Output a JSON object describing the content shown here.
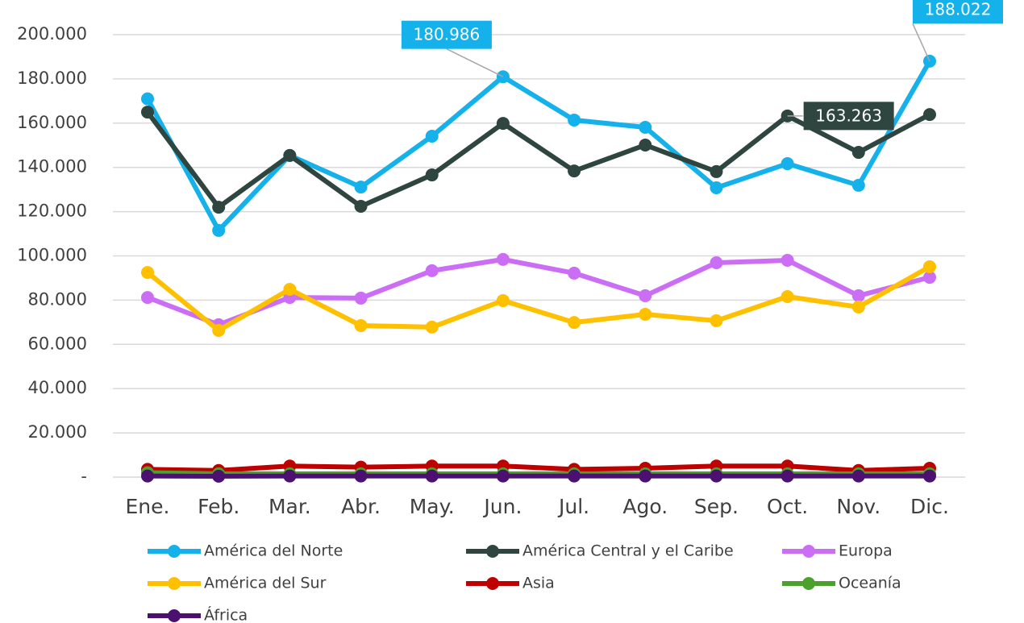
{
  "chart_data": {
    "type": "line",
    "categories": [
      "Ene.",
      "Feb.",
      "Mar.",
      "Abr.",
      "May.",
      "Jun.",
      "Jul.",
      "Ago.",
      "Sep.",
      "Oct.",
      "Nov.",
      "Dic."
    ],
    "ylim": [
      0,
      200000
    ],
    "yticks": [
      {
        "value": 0,
        "label": "-"
      },
      {
        "value": 20000,
        "label": "20.000"
      },
      {
        "value": 40000,
        "label": "40.000"
      },
      {
        "value": 60000,
        "label": "60.000"
      },
      {
        "value": 80000,
        "label": "80.000"
      },
      {
        "value": 100000,
        "label": "100.000"
      },
      {
        "value": 120000,
        "label": "120.000"
      },
      {
        "value": 140000,
        "label": "140.000"
      },
      {
        "value": 160000,
        "label": "160.000"
      },
      {
        "value": 180000,
        "label": "180.000"
      },
      {
        "value": 200000,
        "label": "200.000"
      }
    ],
    "grid": true,
    "legend": "bottom",
    "series": [
      {
        "name": "América del Norte",
        "color": "#14b1ea",
        "values": [
          171000,
          111500,
          145400,
          131100,
          154100,
          180986,
          161400,
          158100,
          130800,
          141700,
          131900,
          188022
        ],
        "value_labels": [
          null,
          null,
          null,
          null,
          null,
          "180.986",
          null,
          null,
          null,
          null,
          null,
          "188.022"
        ]
      },
      {
        "name": "América Central y el Caribe",
        "color": "#2f4640",
        "values": [
          165000,
          122000,
          145400,
          122400,
          136600,
          159900,
          138400,
          150100,
          138100,
          163263,
          146800,
          163900
        ],
        "value_labels": [
          null,
          null,
          null,
          null,
          null,
          null,
          null,
          null,
          null,
          "163.263",
          null,
          null
        ]
      },
      {
        "name": "Europa",
        "color": "#cc6ef5",
        "values": [
          81200,
          68900,
          81200,
          80900,
          93300,
          98400,
          92200,
          82000,
          96900,
          98000,
          82000,
          90300
        ]
      },
      {
        "name": "América del Sur",
        "color": "#ffc000",
        "values": [
          92500,
          66300,
          84900,
          68500,
          67800,
          79800,
          69900,
          73600,
          70700,
          81600,
          76900,
          95100
        ]
      },
      {
        "name": "Asia",
        "color": "#c00000",
        "values": [
          3500,
          3000,
          5000,
          4500,
          5000,
          5000,
          3500,
          4000,
          5000,
          5000,
          3000,
          4000
        ]
      },
      {
        "name": "Oceanía",
        "color": "#4ca12e",
        "values": [
          2000,
          1500,
          1500,
          1500,
          1500,
          1500,
          1500,
          1500,
          1500,
          1500,
          1500,
          1500
        ]
      },
      {
        "name": "África",
        "color": "#4b1070",
        "values": [
          500,
          400,
          500,
          500,
          500,
          500,
          500,
          500,
          500,
          500,
          500,
          500
        ]
      }
    ]
  }
}
